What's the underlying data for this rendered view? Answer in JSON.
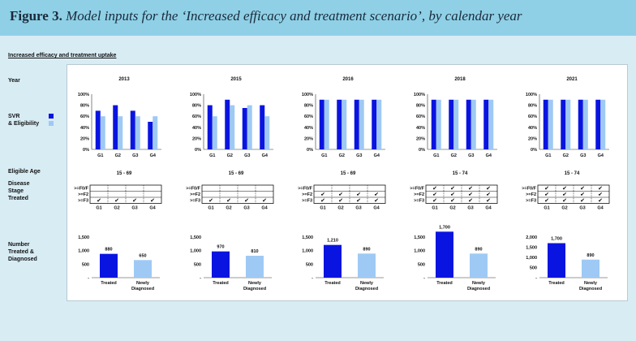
{
  "figure": {
    "label": "Figure 3.",
    "caption": "Model inputs for the ‘Increased efficacy and treatment scenario’, by calendar year"
  },
  "section_title": "Increased efficacy and treatment uptake",
  "row_labels": {
    "year": "Year",
    "svr_line1": "SVR",
    "svr_line2": "& Eligibility",
    "eligible_age": "Eligible Age",
    "stage_line1": "Disease",
    "stage_line2": "Stage",
    "stage_line3": "Treated",
    "number_line1": "Number",
    "number_line2": "Treated &",
    "number_line3": "Diagnosed"
  },
  "colors": {
    "svr": "#0a14e0",
    "eligibility": "#9ec9f4",
    "treated": "#0a14e0",
    "diagnosed": "#9ec9f4"
  },
  "stage_rows": [
    ">=F0/F",
    ">=F2",
    ">=F3"
  ],
  "check_mark": "✔",
  "chart_data": [
    {
      "type": "bar",
      "year": "2013",
      "eligible_age": "15 - 69",
      "svr": {
        "categories": [
          "G1",
          "G2",
          "G3",
          "G4"
        ],
        "series": [
          {
            "key": "svr",
            "values": [
              70,
              80,
              70,
              50
            ]
          },
          {
            "key": "eligibility",
            "values": [
              60,
              60,
              60,
              60
            ]
          }
        ],
        "ylim": [
          0,
          100
        ],
        "yticks": [
          "0%",
          "20%",
          "40%",
          "60%",
          "80%",
          "100%"
        ]
      },
      "stage": {
        "columns": [
          "G1",
          "G2",
          "G3",
          "G4"
        ],
        "checked": [
          [
            false,
            false,
            false,
            false
          ],
          [
            false,
            false,
            false,
            false
          ],
          [
            true,
            true,
            true,
            true
          ]
        ]
      },
      "counts": {
        "categories": [
          "Treated",
          "Newly Diagnosed"
        ],
        "values": [
          880,
          650
        ],
        "labels": [
          "880",
          "650"
        ],
        "ylim": [
          0,
          1500
        ],
        "yticks": [
          "-",
          "500",
          "1,000",
          "1,500"
        ]
      }
    },
    {
      "type": "bar",
      "year": "2015",
      "eligible_age": "15 - 69",
      "svr": {
        "categories": [
          "G1",
          "G2",
          "G3",
          "G4"
        ],
        "series": [
          {
            "key": "svr",
            "values": [
              80,
              90,
              75,
              80
            ]
          },
          {
            "key": "eligibility",
            "values": [
              60,
              80,
              80,
              60
            ]
          }
        ],
        "ylim": [
          0,
          100
        ],
        "yticks": [
          "0%",
          "20%",
          "40%",
          "60%",
          "80%",
          "100%"
        ]
      },
      "stage": {
        "columns": [
          "G1",
          "G2",
          "G3",
          "G4"
        ],
        "checked": [
          [
            false,
            false,
            false,
            false
          ],
          [
            false,
            false,
            false,
            false
          ],
          [
            true,
            true,
            true,
            true
          ]
        ]
      },
      "counts": {
        "categories": [
          "Treated",
          "Newly Diagnosed"
        ],
        "values": [
          970,
          810
        ],
        "labels": [
          "970",
          "810"
        ],
        "ylim": [
          0,
          1500
        ],
        "yticks": [
          "-",
          "500",
          "1,000",
          "1,500"
        ]
      }
    },
    {
      "type": "bar",
      "year": "2016",
      "eligible_age": "15 - 69",
      "svr": {
        "categories": [
          "G1",
          "G2",
          "G3",
          "G4"
        ],
        "series": [
          {
            "key": "svr",
            "values": [
              90,
              90,
              90,
              90
            ]
          },
          {
            "key": "eligibility",
            "values": [
              90,
              90,
              90,
              90
            ]
          }
        ],
        "ylim": [
          0,
          100
        ],
        "yticks": [
          "0%",
          "20%",
          "40%",
          "60%",
          "80%",
          "100%"
        ]
      },
      "stage": {
        "columns": [
          "G1",
          "G2",
          "G3",
          "G4"
        ],
        "checked": [
          [
            false,
            false,
            false,
            false
          ],
          [
            true,
            true,
            true,
            true
          ],
          [
            true,
            true,
            true,
            true
          ]
        ]
      },
      "counts": {
        "categories": [
          "Treated",
          "Newly Diagnosed"
        ],
        "values": [
          1210,
          890
        ],
        "labels": [
          "1,210",
          "890"
        ],
        "ylim": [
          0,
          1500
        ],
        "yticks": [
          "-",
          "500",
          "1,000",
          "1,500"
        ]
      }
    },
    {
      "type": "bar",
      "year": "2018",
      "eligible_age": "15 - 74",
      "svr": {
        "categories": [
          "G1",
          "G2",
          "G3",
          "G4"
        ],
        "series": [
          {
            "key": "svr",
            "values": [
              90,
              90,
              90,
              90
            ]
          },
          {
            "key": "eligibility",
            "values": [
              90,
              90,
              90,
              90
            ]
          }
        ],
        "ylim": [
          0,
          100
        ],
        "yticks": [
          "0%",
          "20%",
          "40%",
          "60%",
          "80%",
          "100%"
        ]
      },
      "stage": {
        "columns": [
          "G1",
          "G2",
          "G3",
          "G4"
        ],
        "checked": [
          [
            true,
            true,
            true,
            true
          ],
          [
            true,
            true,
            true,
            true
          ],
          [
            true,
            true,
            true,
            true
          ]
        ]
      },
      "counts": {
        "categories": [
          "Treated",
          "Newly Diagnosed"
        ],
        "values": [
          1700,
          890
        ],
        "labels": [
          "1,700",
          "890"
        ],
        "ylim": [
          0,
          1500
        ],
        "yticks": [
          "-",
          "500",
          "1,000",
          "1,500"
        ]
      }
    },
    {
      "type": "bar",
      "year": "2021",
      "eligible_age": "15 - 74",
      "svr": {
        "categories": [
          "G1",
          "G2",
          "G3",
          "G4"
        ],
        "series": [
          {
            "key": "svr",
            "values": [
              90,
              90,
              90,
              90
            ]
          },
          {
            "key": "eligibility",
            "values": [
              90,
              90,
              90,
              90
            ]
          }
        ],
        "ylim": [
          0,
          100
        ],
        "yticks": [
          "0%",
          "20%",
          "40%",
          "60%",
          "80%",
          "100%"
        ]
      },
      "stage": {
        "columns": [
          "G1",
          "G2",
          "G3",
          "G4"
        ],
        "checked": [
          [
            true,
            true,
            true,
            true
          ],
          [
            true,
            true,
            true,
            true
          ],
          [
            true,
            true,
            true,
            true
          ]
        ]
      },
      "counts": {
        "categories": [
          "Treated",
          "Newly Diagnosed"
        ],
        "values": [
          1700,
          890
        ],
        "labels": [
          "1,700",
          "890"
        ],
        "ylim": [
          0,
          2000
        ],
        "yticks": [
          "-",
          "500",
          "1,000",
          "1,500",
          "2,000"
        ]
      }
    }
  ]
}
